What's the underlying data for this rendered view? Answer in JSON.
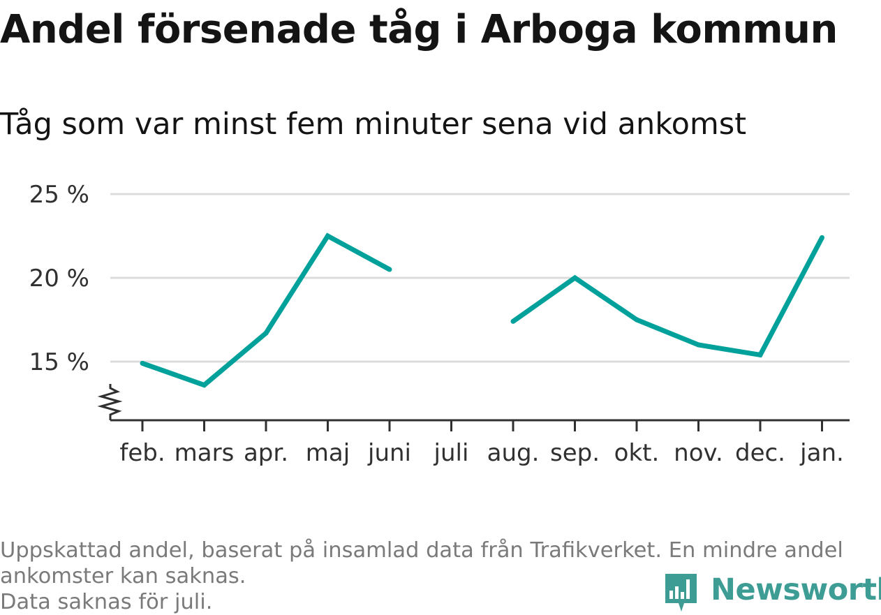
{
  "title": "Andel försenade tåg i Arboga kommun",
  "subtitle": "Tåg som var minst fem minuter sena vid ankomst",
  "footer": {
    "line1": "Uppskattad andel, baserat på insamlad data från Trafikverket. En mindre andel",
    "line2": "ankomster kan saknas.",
    "line3": "Data saknas för juli."
  },
  "brand": {
    "name": "Newsworthy",
    "icon": "bar-chart-speech-bubble-icon"
  },
  "colors": {
    "line": "#00a19a",
    "grid": "#dcdcdc",
    "axis": "#303030",
    "brand": "#3d9c94"
  },
  "chart_data": {
    "type": "line",
    "categories": [
      "feb.",
      "mars",
      "apr.",
      "maj",
      "juni",
      "juli",
      "aug.",
      "sep.",
      "okt.",
      "nov.",
      "dec.",
      "jan."
    ],
    "series": [
      {
        "values": [
          14.9,
          13.6,
          16.7,
          22.5,
          20.5,
          null,
          17.4,
          20.0,
          17.5,
          16.0,
          15.4,
          22.4
        ]
      }
    ],
    "y_ticks": [
      {
        "value": 15,
        "label": "15 %"
      },
      {
        "value": 20,
        "label": "20 %"
      },
      {
        "value": 25,
        "label": "25 %"
      }
    ],
    "ylim": [
      11.5,
      25
    ],
    "y_axis_break": true,
    "grid": true,
    "legend": "none"
  }
}
